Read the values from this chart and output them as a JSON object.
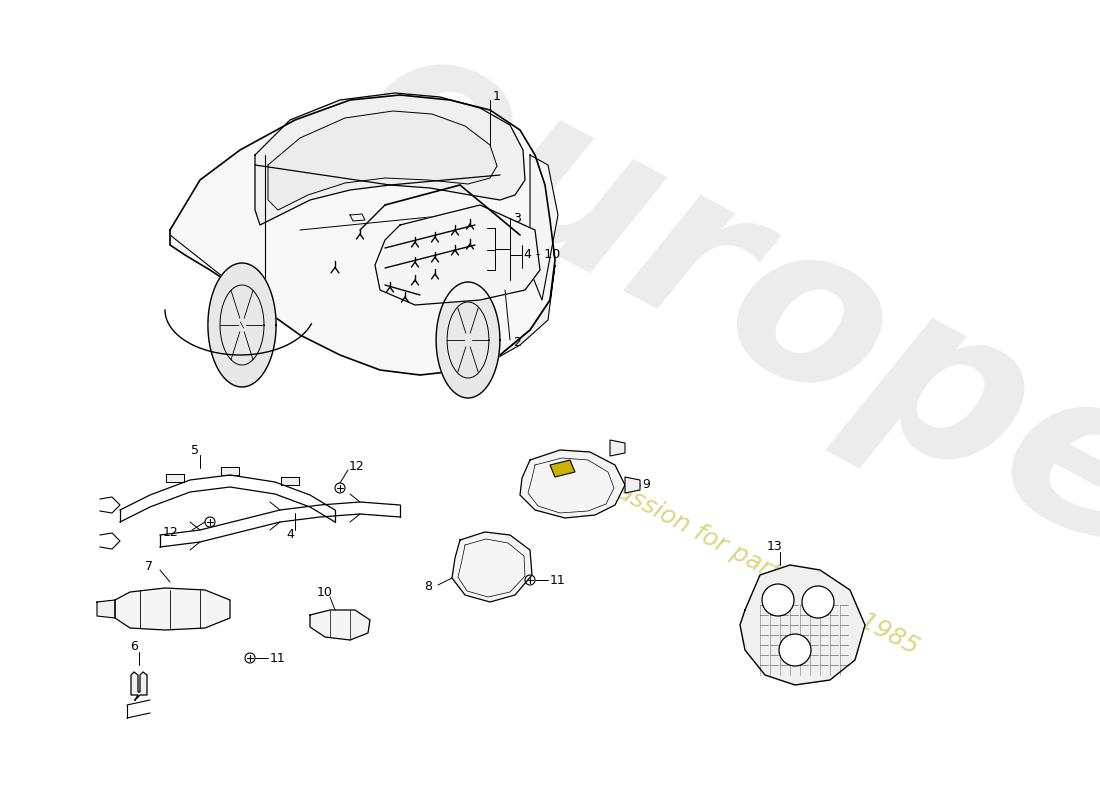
{
  "bg": "#ffffff",
  "lc": "#000000",
  "wm_gray": "#cccccc",
  "wm_yellow": "#d4c84a",
  "fig_w": 11.0,
  "fig_h": 8.0,
  "dpi": 100
}
